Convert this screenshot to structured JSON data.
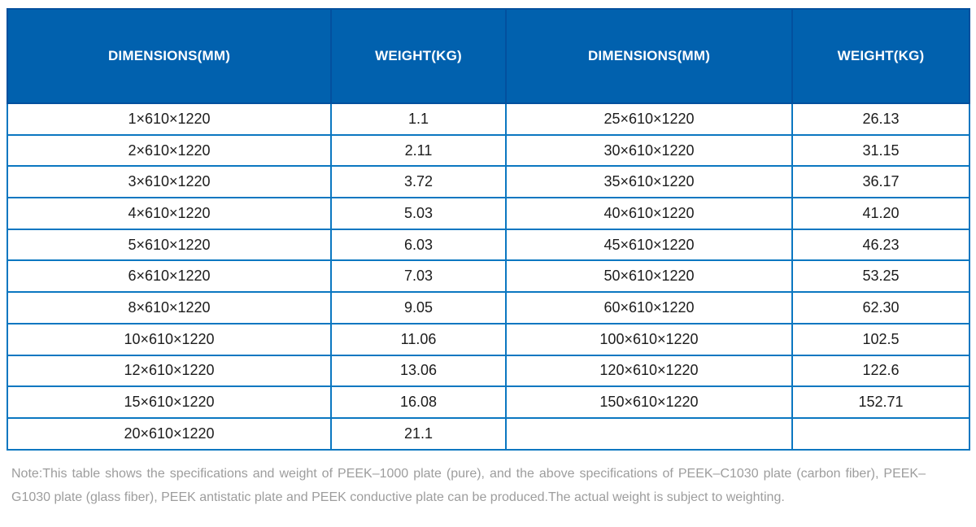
{
  "table": {
    "headers": [
      "DIMENSIONS(MM)",
      "WEIGHT(KG)",
      "DIMENSIONS(MM)",
      "WEIGHT(KG)"
    ],
    "rows": [
      [
        "1×610×1220",
        "1.1",
        "25×610×1220",
        "26.13"
      ],
      [
        "2×610×1220",
        "2.11",
        "30×610×1220",
        "31.15"
      ],
      [
        "3×610×1220",
        "3.72",
        "35×610×1220",
        "36.17"
      ],
      [
        "4×610×1220",
        "5.03",
        "40×610×1220",
        "41.20"
      ],
      [
        "5×610×1220",
        "6.03",
        "45×610×1220",
        "46.23"
      ],
      [
        "6×610×1220",
        "7.03",
        "50×610×1220",
        "53.25"
      ],
      [
        "8×610×1220",
        "9.05",
        "60×610×1220",
        "62.30"
      ],
      [
        "10×610×1220",
        "11.06",
        "100×610×1220",
        "102.5"
      ],
      [
        "12×610×1220",
        "13.06",
        "120×610×1220",
        "122.6"
      ],
      [
        "15×610×1220",
        "16.08",
        "150×610×1220",
        "152.71"
      ],
      [
        "20×610×1220",
        "21.1",
        "",
        ""
      ]
    ]
  },
  "note": "Note:This table shows the specifications and weight of PEEK–1000 plate (pure), and the above specifications of PEEK–C1030 plate (carbon fiber), PEEK–G1030 plate (glass fiber), PEEK antistatic plate and PEEK conductive plate can be produced.The actual weight is subject to weighting.",
  "colors": {
    "header_bg": "#0161ae",
    "header_border": "#03509e",
    "body_border": "#0b77c1",
    "body_text": "#1c1c1c",
    "note_text": "#9d9d9d"
  }
}
